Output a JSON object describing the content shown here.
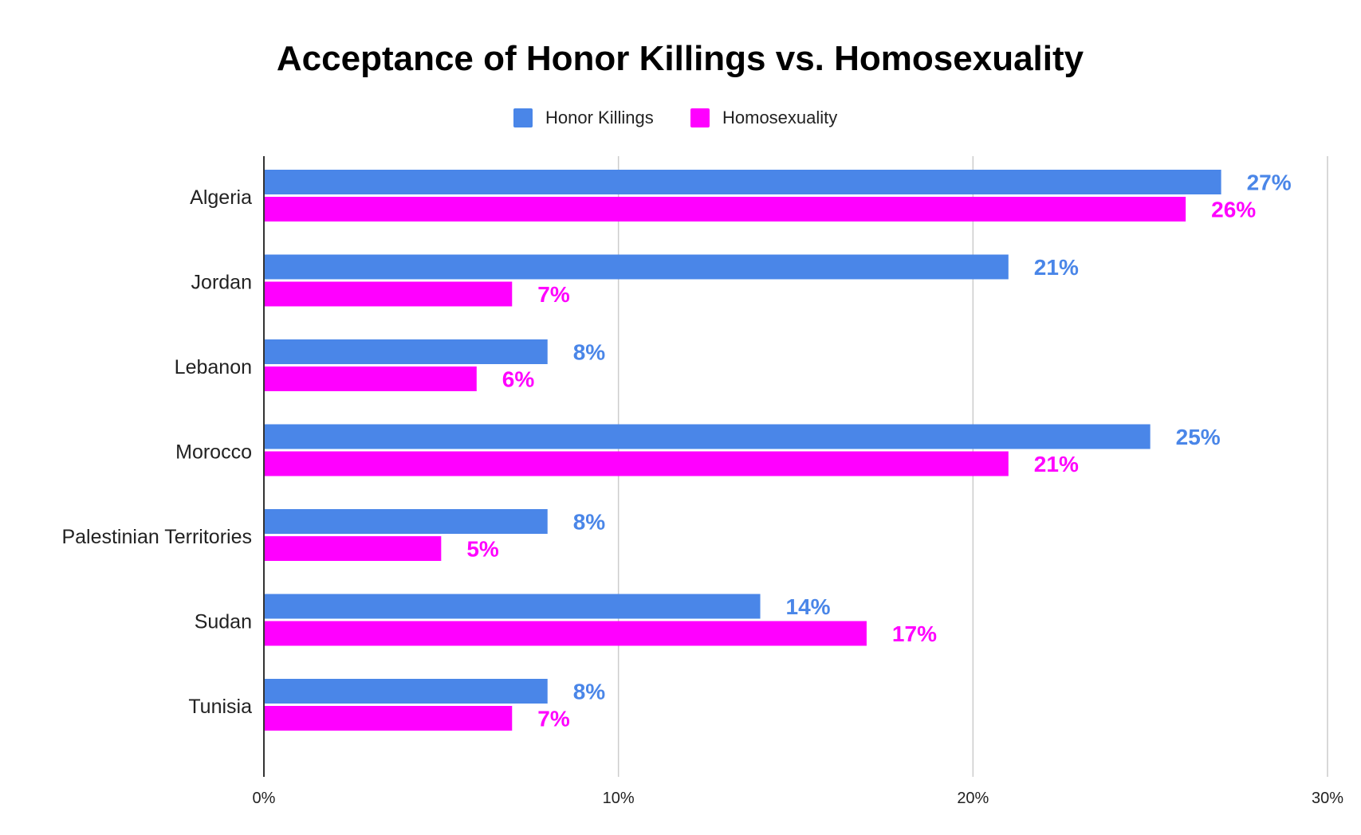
{
  "chart_data": {
    "type": "bar",
    "orientation": "horizontal",
    "title": "Acceptance of Honor Killings vs. Homosexuality",
    "categories": [
      "Algeria",
      "Jordan",
      "Lebanon",
      "Morocco",
      "Palestinian Territories",
      "Sudan",
      "Tunisia"
    ],
    "series": [
      {
        "name": "Honor Killings",
        "color": "#4a86e8",
        "values": [
          27,
          21,
          8,
          25,
          8,
          14,
          8
        ]
      },
      {
        "name": "Homosexuality",
        "color": "#ff00ff",
        "values": [
          26,
          7,
          6,
          21,
          5,
          17,
          7
        ]
      }
    ],
    "x_ticks": [
      "0%",
      "10%",
      "20%",
      "30%"
    ],
    "xlim": [
      0,
      30
    ],
    "value_suffix": "%",
    "legend_position": "top-center",
    "grid": true
  }
}
